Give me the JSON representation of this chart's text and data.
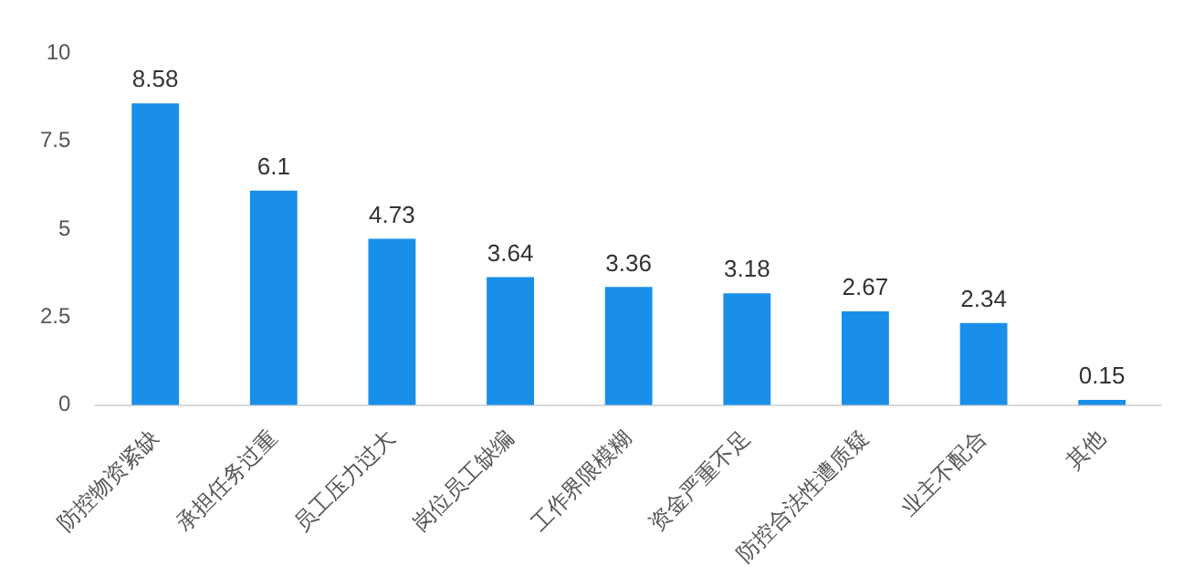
{
  "chart_data": {
    "type": "bar",
    "categories": [
      "防控物资紧缺",
      "承担任务过重",
      "员工压力过大",
      "岗位员工缺编",
      "工作界限模糊",
      "资金严重不足",
      "防控合法性遭质疑",
      "业主不配合",
      "其他"
    ],
    "values": [
      8.58,
      6.1,
      4.73,
      3.64,
      3.36,
      3.18,
      2.67,
      2.34,
      0.15
    ],
    "color": "#1a8fea",
    "ylim": [
      0,
      10
    ],
    "yticks": [
      0,
      2.5,
      5,
      7.5,
      10
    ],
    "data_labels": true,
    "grid": false,
    "legend": false
  }
}
